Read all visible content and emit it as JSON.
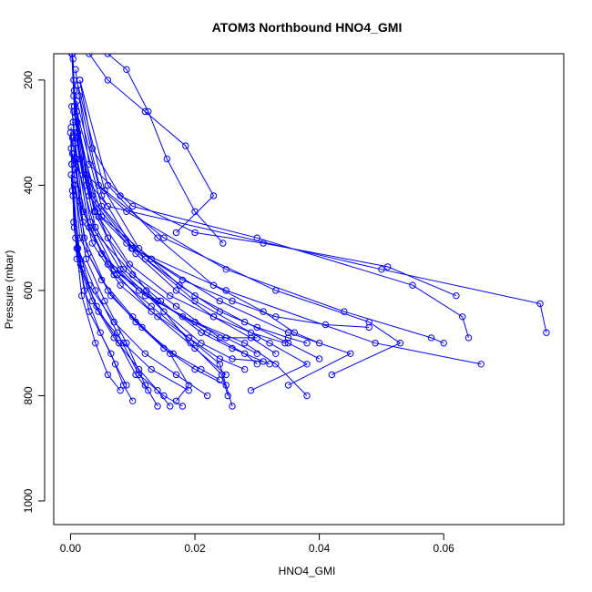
{
  "chart_data": {
    "type": "line",
    "title": "ATOM3 Northbound HNO4_GMI",
    "xlabel": "HNO4_GMI",
    "ylabel": "Pressure (mbar)",
    "xlim": [
      -0.0027,
      0.0793
    ],
    "ylim": [
      1045,
      150
    ],
    "y_reversed": true,
    "x_ticks": [
      0.0,
      0.02,
      0.04,
      0.06
    ],
    "x_tick_labels": [
      "0.00",
      "0.02",
      "0.04",
      "0.06"
    ],
    "y_ticks": [
      200,
      400,
      600,
      800,
      1000
    ],
    "y_tick_labels": [
      "200",
      "400",
      "600",
      "800",
      "1000"
    ],
    "grid": false,
    "legend": "none",
    "series_color": "#0000ff",
    "marker": "open-circle",
    "series": [
      {
        "x": [
          0.0003,
          0.0005,
          0.0012,
          0.0025,
          0.006,
          0.0122,
          0.0193,
          0.0243,
          0.0253
        ],
        "y": [
          150,
          200,
          300,
          400,
          500,
          600,
          700,
          760,
          800
        ]
      },
      {
        "x": [
          0.0002,
          0.0006,
          0.0015,
          0.004,
          0.0098,
          0.025,
          0.049,
          0.066
        ],
        "y": [
          150,
          250,
          350,
          450,
          520,
          600,
          700,
          740
        ]
      },
      {
        "x": [
          0.0004,
          0.0008,
          0.002,
          0.006,
          0.05,
          0.0755,
          0.0765
        ],
        "y": [
          160,
          280,
          380,
          440,
          560,
          625,
          680
        ]
      },
      {
        "x": [
          0.003,
          0.006,
          0.012,
          0.0185,
          0.023,
          0.017
        ],
        "y": [
          150,
          200,
          260,
          325,
          420,
          490
        ]
      },
      {
        "x": [
          0.006,
          0.009,
          0.0125,
          0.0155,
          0.02,
          0.0245
        ],
        "y": [
          150,
          180,
          260,
          350,
          450,
          510
        ]
      },
      {
        "x": [
          0.0015,
          0.0035,
          0.008,
          0.02,
          0.031,
          0.051,
          0.062
        ],
        "y": [
          200,
          330,
          420,
          490,
          510,
          555,
          610
        ]
      },
      {
        "x": [
          0.0008,
          0.003,
          0.01,
          0.03,
          0.055,
          0.063,
          0.064
        ],
        "y": [
          180,
          360,
          440,
          500,
          590,
          650,
          690
        ]
      },
      {
        "x": [
          0.0006,
          0.0025,
          0.009,
          0.025,
          0.044,
          0.058,
          0.06
        ],
        "y": [
          220,
          380,
          450,
          560,
          640,
          690,
          700
        ]
      },
      {
        "x": [
          0.001,
          0.0045,
          0.015,
          0.033,
          0.048,
          0.053,
          0.042
        ],
        "y": [
          240,
          400,
          500,
          600,
          660,
          700,
          760
        ]
      },
      {
        "x": [
          0.0005,
          0.0035,
          0.01,
          0.02,
          0.032,
          0.038,
          0.029
        ],
        "y": [
          260,
          420,
          520,
          620,
          700,
          740,
          790
        ]
      },
      {
        "x": [
          0.0012,
          0.005,
          0.013,
          0.024,
          0.035,
          0.045,
          0.035
        ],
        "y": [
          300,
          460,
          540,
          620,
          680,
          720,
          780
        ]
      },
      {
        "x": [
          0.0004,
          0.002,
          0.006,
          0.012,
          0.02,
          0.028,
          0.033,
          0.038
        ],
        "y": [
          280,
          450,
          550,
          610,
          660,
          700,
          740,
          800
        ]
      },
      {
        "x": [
          0.0007,
          0.003,
          0.007,
          0.013,
          0.019,
          0.024,
          0.026
        ],
        "y": [
          320,
          480,
          570,
          630,
          690,
          740,
          820
        ]
      },
      {
        "x": [
          0.0003,
          0.0015,
          0.005,
          0.01,
          0.016,
          0.019,
          0.017
        ],
        "y": [
          340,
          500,
          580,
          650,
          720,
          780,
          810
        ]
      },
      {
        "x": [
          0.0002,
          0.0012,
          0.004,
          0.0075,
          0.011,
          0.015,
          0.018
        ],
        "y": [
          360,
          520,
          600,
          680,
          760,
          800,
          820
        ]
      },
      {
        "x": [
          0.0006,
          0.0025,
          0.0055,
          0.009,
          0.012,
          0.014
        ],
        "y": [
          400,
          540,
          620,
          700,
          780,
          820
        ]
      },
      {
        "x": [
          0.0001,
          0.001,
          0.003,
          0.0065,
          0.0085,
          0.01
        ],
        "y": [
          380,
          520,
          640,
          720,
          780,
          810
        ]
      },
      {
        "x": [
          0.0008,
          0.004,
          0.008,
          0.015,
          0.021,
          0.026,
          0.031
        ],
        "y": [
          300,
          480,
          560,
          640,
          700,
          730,
          735
        ]
      },
      {
        "x": [
          0.001,
          0.005,
          0.012,
          0.02,
          0.028,
          0.035,
          0.04
        ],
        "y": [
          260,
          440,
          540,
          610,
          660,
          700,
          730
        ]
      },
      {
        "x": [
          0.0005,
          0.003,
          0.009,
          0.018,
          0.026,
          0.033,
          0.041,
          0.048
        ],
        "y": [
          230,
          420,
          510,
          580,
          620,
          650,
          665,
          670
        ]
      },
      {
        "x": [
          0.0015,
          0.006,
          0.014,
          0.023,
          0.031,
          0.036,
          0.04
        ],
        "y": [
          200,
          400,
          500,
          590,
          640,
          680,
          700
        ]
      },
      {
        "x": [
          0.0009,
          0.004,
          0.01,
          0.017,
          0.024,
          0.03
        ],
        "y": [
          350,
          490,
          570,
          630,
          690,
          690
        ]
      },
      {
        "x": [
          0.0003,
          0.002,
          0.007,
          0.014,
          0.022,
          0.028,
          0.03
        ],
        "y": [
          310,
          470,
          560,
          620,
          680,
          720,
          740
        ]
      },
      {
        "x": [
          0.0001,
          0.0008,
          0.003,
          0.007,
          0.012,
          0.017,
          0.022
        ],
        "y": [
          330,
          500,
          590,
          660,
          720,
          760,
          800
        ]
      },
      {
        "x": [
          0.0007,
          0.0035,
          0.008,
          0.014,
          0.02,
          0.025
        ],
        "y": [
          370,
          510,
          590,
          650,
          710,
          760
        ]
      },
      {
        "x": [
          0.0004,
          0.0018,
          0.0045,
          0.0085,
          0.013,
          0.019
        ],
        "y": [
          420,
          560,
          640,
          700,
          750,
          790
        ]
      },
      {
        "x": [
          0.0011,
          0.0045,
          0.0095,
          0.016,
          0.023,
          0.029,
          0.0345
        ],
        "y": [
          280,
          460,
          550,
          610,
          650,
          680,
          700
        ]
      },
      {
        "x": [
          0.0002,
          0.0014,
          0.005,
          0.011,
          0.018,
          0.025,
          0.03
        ],
        "y": [
          250,
          430,
          530,
          600,
          650,
          690,
          720
        ]
      },
      {
        "x": [
          0.0006,
          0.0028,
          0.0065,
          0.0115,
          0.0165,
          0.021,
          0.024
        ],
        "y": [
          390,
          530,
          610,
          670,
          720,
          750,
          770
        ]
      },
      {
        "x": [
          0.0003,
          0.0016,
          0.0042,
          0.0078,
          0.0105,
          0.0125
        ],
        "y": [
          410,
          550,
          630,
          700,
          760,
          790
        ]
      },
      {
        "x": [
          0.0,
          0.0006,
          0.0022,
          0.0048,
          0.0072,
          0.009
        ],
        "y": [
          300,
          480,
          600,
          680,
          740,
          780
        ]
      },
      {
        "x": [
          0.0012,
          0.0055,
          0.011,
          0.0175,
          0.024,
          0.03,
          0.035,
          0.038
        ],
        "y": [
          210,
          410,
          520,
          590,
          640,
          670,
          690,
          700
        ]
      },
      {
        "x": [
          0.0008,
          0.0038,
          0.0085,
          0.0145,
          0.021,
          0.026,
          0.032
        ],
        "y": [
          270,
          450,
          560,
          620,
          680,
          710,
          740
        ]
      },
      {
        "x": [
          0.0005,
          0.0022,
          0.006,
          0.0105,
          0.015,
          0.02,
          0.025
        ],
        "y": [
          340,
          500,
          600,
          660,
          710,
          750,
          780
        ]
      },
      {
        "x": [
          0.0002,
          0.001,
          0.0035,
          0.007,
          0.011,
          0.014,
          0.016
        ],
        "y": [
          360,
          540,
          620,
          690,
          750,
          790,
          820
        ]
      },
      {
        "x": [
          0.0001,
          0.0005,
          0.0018,
          0.004,
          0.006,
          0.008
        ],
        "y": [
          290,
          470,
          610,
          700,
          760,
          790
        ]
      },
      {
        "x": [
          0.0014,
          0.005,
          0.0105,
          0.017,
          0.023,
          0.029,
          0.033
        ],
        "y": [
          230,
          420,
          530,
          600,
          650,
          690,
          720
        ]
      },
      {
        "x": [
          0.0009,
          0.0032,
          0.0075,
          0.013,
          0.019,
          0.024,
          0.028
        ],
        "y": [
          310,
          470,
          570,
          640,
          690,
          730,
          750
        ]
      }
    ]
  }
}
